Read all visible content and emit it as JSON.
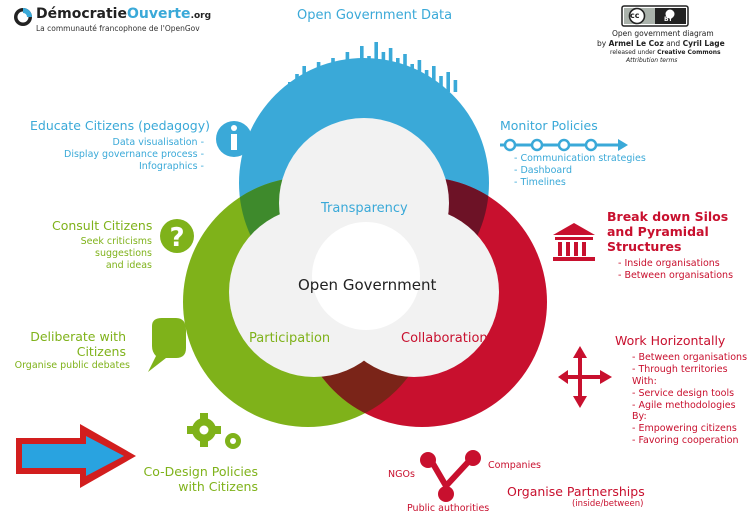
{
  "logo": {
    "name_part1": "Démocratie",
    "name_part2": "Ouverte",
    "tld": ".org",
    "tagline": "La communauté francophone de l'OpenGov"
  },
  "license": {
    "badge_cc": "cc",
    "badge_by": "BY",
    "line1": "Open government diagram",
    "line2_prefix": "by ",
    "author1": "Armel Le Coz",
    "and": " and ",
    "author2": "Cyril Lage",
    "line3_prefix": "released under ",
    "license_name": "Creative Commons",
    "line4": "Attribution terms"
  },
  "center": {
    "title": "Open Government"
  },
  "circles": {
    "transparency": "Transparency",
    "participation": "Participation",
    "collaboration": "Collaboration"
  },
  "colors": {
    "transparency": "#3aa9d8",
    "participation": "#7fb21a",
    "collaboration": "#c8102e"
  },
  "open_data": {
    "title": "Open Government Data"
  },
  "educate": {
    "title": "Educate Citizens (pedagogy)",
    "items": [
      "Data visualisation -",
      "Display governance process -",
      "Infographics -"
    ]
  },
  "monitor": {
    "title": "Monitor Policies",
    "items": [
      "- Communication strategies",
      "- Dashboard",
      "- Timelines"
    ]
  },
  "consult": {
    "title": "Consult Citizens",
    "items": [
      "Seek criticisms",
      "suggestions",
      "and ideas"
    ]
  },
  "deliberate": {
    "title_line1": "Deliberate with",
    "title_line2": "Citizens",
    "items": [
      "Organise public debates"
    ]
  },
  "codesign": {
    "title_line1": "Co-Design Policies",
    "title_line2": "with Citizens"
  },
  "silos": {
    "title_line1": "Break down Silos",
    "title_line2": "and Pyramidal",
    "title_line3": "Structures",
    "items": [
      "- Inside organisations",
      "- Between organisations"
    ]
  },
  "horizontal": {
    "title": "Work Horizontally",
    "items": [
      "- Between organisations",
      "- Through territories",
      "With:",
      "- Service design tools",
      "- Agile methodologies",
      "By:",
      "- Empowering citizens",
      "- Favoring cooperation"
    ]
  },
  "partnerships": {
    "title_line1": "Organise Partnerships",
    "title_line2": "(inside/between)",
    "ngos": "NGOs",
    "companies": "Companies",
    "public": "Public authorities"
  },
  "icons": [
    "info-icon",
    "question-mark-icon",
    "speech-bubble-icon",
    "gears-icon",
    "timeline-arrow-icon",
    "building-icon",
    "four-way-arrows-icon",
    "network-nodes-icon",
    "red-arrow-pointer"
  ]
}
